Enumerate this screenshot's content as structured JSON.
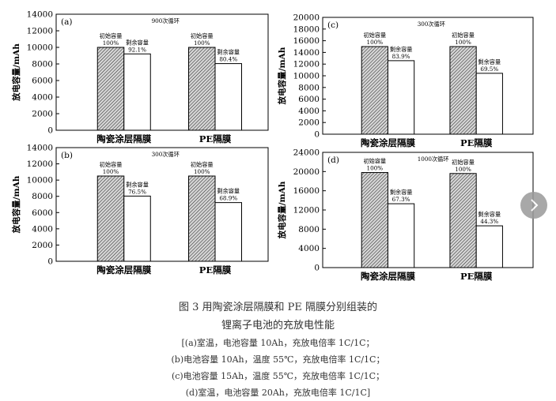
{
  "chart_data": [
    {
      "type": "bar",
      "panel": "(a)",
      "note": "900次循环",
      "categories": [
        "陶瓷涂层隔膜",
        "PE隔膜"
      ],
      "series": [
        {
          "name": "初始容量",
          "values": [
            10000,
            10000
          ],
          "labels": [
            "100%",
            "100%"
          ]
        },
        {
          "name": "剩余容量",
          "values": [
            9210,
            8040
          ],
          "labels": [
            "92.1%",
            "80.4%"
          ]
        }
      ],
      "ylabel": "放电容量/mAh",
      "ylim": [
        0,
        14000
      ],
      "yticks": [
        0,
        2000,
        4000,
        6000,
        8000,
        10000,
        12000,
        14000
      ]
    },
    {
      "type": "bar",
      "panel": "(c)",
      "note": "300次循环",
      "categories": [
        "陶瓷涂层隔膜",
        "PE隔膜"
      ],
      "series": [
        {
          "name": "初始容量",
          "values": [
            15000,
            15000
          ],
          "labels": [
            "100%",
            "100%"
          ]
        },
        {
          "name": "剩余容量",
          "values": [
            12585,
            10425
          ],
          "labels": [
            "83.9%",
            "69.5%"
          ]
        }
      ],
      "ylabel": "放电容量/mAh",
      "ylim": [
        0,
        20000
      ],
      "yticks": [
        0,
        2000,
        4000,
        6000,
        8000,
        10000,
        12000,
        14000,
        16000,
        18000,
        20000
      ]
    },
    {
      "type": "bar",
      "panel": "(b)",
      "note": "300次循环",
      "categories": [
        "陶瓷涂层隔膜",
        "PE隔膜"
      ],
      "series": [
        {
          "name": "初始容量",
          "values": [
            10500,
            10500
          ],
          "labels": [
            "100%",
            "100%"
          ]
        },
        {
          "name": "剩余容量",
          "values": [
            8030,
            7230
          ],
          "labels": [
            "76.5%",
            "68.9%"
          ]
        }
      ],
      "ylabel": "放电容量/mAh",
      "ylim": [
        0,
        14000
      ],
      "yticks": [
        0,
        2000,
        4000,
        6000,
        8000,
        10000,
        12000,
        14000
      ]
    },
    {
      "type": "bar",
      "panel": "(d)",
      "note": "1000次循环",
      "categories": [
        "陶瓷涂层隔膜",
        "PE隔膜"
      ],
      "series": [
        {
          "name": "初始容量",
          "values": [
            19800,
            19600
          ],
          "labels": [
            "100%",
            "100%"
          ]
        },
        {
          "name": "剩余容量",
          "values": [
            13300,
            8700
          ],
          "labels": [
            "67.3%",
            "44.3%"
          ]
        }
      ],
      "ylabel": "放电容量/mAh",
      "ylim": [
        0,
        24000
      ],
      "yticks": [
        0,
        4000,
        8000,
        12000,
        16000,
        20000,
        24000
      ]
    }
  ],
  "caption": {
    "title": "图 3   用陶瓷涂层隔膜和 PE 隔膜分别组装的",
    "title2": "锂离子电池的充放电性能",
    "a": "[(a)室温，电池容量 10Ah，充放电倍率 1C/1C；",
    "b": "(b)电池容量 10Ah，温度 55℃，充放电倍率 1C/1C；",
    "c": "(c)电池容量 15Ah，温度 55℃，充放电倍率 1C/1C；",
    "d": "(d)室温，电池容量 20Ah，充放电倍率 1C/1C]"
  },
  "icons": {
    "next": "chevron-right-icon"
  }
}
